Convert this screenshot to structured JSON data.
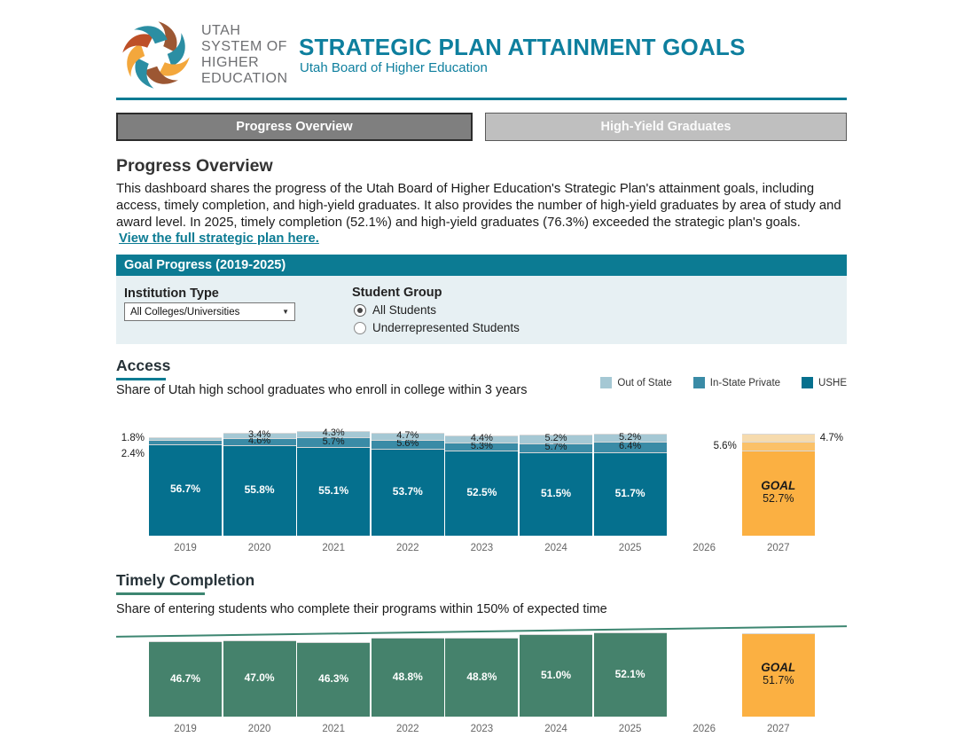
{
  "header": {
    "logo_lines": [
      "UTAH",
      "SYSTEM OF",
      "HIGHER",
      "EDUCATION"
    ],
    "title": "STRATEGIC PLAN ATTAINMENT GOALS",
    "subtitle": "Utah Board of Higher Education"
  },
  "tabs": [
    {
      "label": "Progress Overview",
      "active": true
    },
    {
      "label": "High-Yield Graduates",
      "active": false
    }
  ],
  "overview": {
    "heading": "Progress Overview",
    "body": "This dashboard shares the progress of the Utah Board of Higher Education's Strategic Plan's attainment goals, including access, timely completion, and high-yield graduates. It also provides the number of high-yield graduates by area of study and award level. In 2025, timely completion (52.1%) and high-yield graduates (76.3%) exceeded the strategic plan's goals.",
    "link": "View the full strategic plan here."
  },
  "goal_banner": "Goal Progress (2019-2025)",
  "filters": {
    "institution_label": "Institution Type",
    "institution_value": "All Colleges/Universities",
    "group_label": "Student Group",
    "options": [
      "All Students",
      "Underrepresented Students"
    ],
    "selected": "All Students"
  },
  "colors": {
    "teal": "#0c7b93",
    "title_teal": "#0e7f9e",
    "ushe": "#05708e",
    "in_state_private": "#3a8ba6",
    "out_of_state": "#a5c8d4",
    "goal_main": "#fbb042",
    "goal_mid": "#fbc168",
    "goal_light": "#f6dbae",
    "timely_green": "#45826c",
    "trend_green": "#3d8671",
    "tab_active": "#7f7f7f",
    "tab_inactive": "#bfbfbf",
    "panel_bg": "#e7f0f3"
  },
  "chart_data": [
    {
      "type": "bar",
      "stacked": true,
      "title": "Access",
      "subtitle": "Share of Utah high school graduates who enroll in college within 3 years",
      "categories": [
        "2019",
        "2020",
        "2021",
        "2022",
        "2023",
        "2024",
        "2025",
        "2026",
        "2027"
      ],
      "series": [
        {
          "name": "USHE",
          "color_key": "ushe",
          "values": [
            56.7,
            55.8,
            55.1,
            53.7,
            52.5,
            51.5,
            51.7,
            null,
            null
          ]
        },
        {
          "name": "In-State Private",
          "color_key": "in_state_private",
          "values": [
            2.4,
            4.6,
            5.7,
            5.6,
            5.3,
            5.7,
            6.4,
            null,
            null
          ]
        },
        {
          "name": "Out of State",
          "color_key": "out_of_state",
          "values": [
            1.8,
            3.4,
            4.3,
            4.7,
            4.4,
            5.2,
            5.2,
            null,
            null
          ]
        }
      ],
      "goal": {
        "category": "2027",
        "label": "GOAL",
        "main": 52.7,
        "mid": 5.6,
        "top": 4.7
      },
      "legend": [
        "Out of State",
        "In-State Private",
        "USHE"
      ],
      "legend_color_keys": [
        "out_of_state",
        "in_state_private",
        "ushe"
      ],
      "legend_position": "top-right",
      "ylim": [
        0,
        77
      ],
      "grid": false
    },
    {
      "type": "bar",
      "stacked": false,
      "title": "Timely Completion",
      "subtitle": "Share of entering students who complete their programs within 150% of expected time",
      "categories": [
        "2019",
        "2020",
        "2021",
        "2022",
        "2023",
        "2024",
        "2025",
        "2026",
        "2027"
      ],
      "values": [
        46.7,
        47.0,
        46.3,
        48.8,
        48.8,
        51.0,
        52.1,
        null,
        null
      ],
      "goal": {
        "category": "2027",
        "label": "GOAL",
        "main": 51.7
      },
      "trendline": {
        "start_pct": 49.5,
        "end_pct": 56.0
      },
      "ylim": [
        0,
        63
      ],
      "grid": false
    }
  ]
}
